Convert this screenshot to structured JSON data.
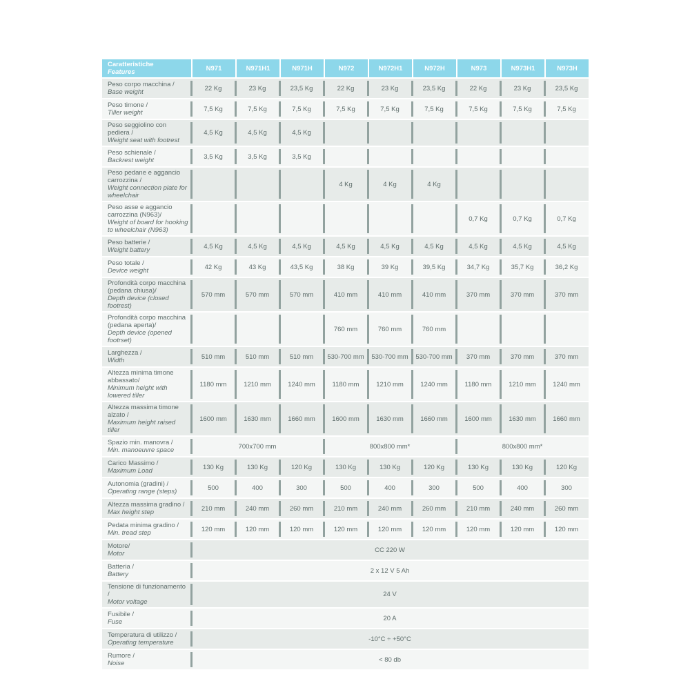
{
  "colors": {
    "header_bg": "#8dd7ea",
    "header_text": "#ffffff",
    "row_gray": "#e7ebe9",
    "row_light": "#f4f6f5",
    "divider": "#92a29f",
    "body_text": "#5d6c6a",
    "page_bg": "#ffffff"
  },
  "table": {
    "header": {
      "feature_label_it": "Caratteristiche",
      "feature_label_en": "Features",
      "columns": [
        "N971",
        "N971H1",
        "N971H",
        "N972",
        "N972H1",
        "N972H",
        "N973",
        "N973H1",
        "N973H"
      ]
    },
    "rows": [
      {
        "label_it": "Peso corpo macchina /",
        "label_en": "Base weight",
        "type": "cells",
        "values": [
          "22 Kg",
          "23 Kg",
          "23,5 Kg",
          "22 Kg",
          "23 Kg",
          "23,5 Kg",
          "22 Kg",
          "23 Kg",
          "23,5 Kg"
        ]
      },
      {
        "label_it": "Peso timone /",
        "label_en": "Tiller weight",
        "type": "cells",
        "values": [
          "7,5 Kg",
          "7,5 Kg",
          "7,5 Kg",
          "7,5 Kg",
          "7,5 Kg",
          "7,5 Kg",
          "7,5 Kg",
          "7,5 Kg",
          "7,5 Kg"
        ]
      },
      {
        "label_it": "Peso seggiolino con pediera /",
        "label_en": "Weight seat with footrest",
        "type": "cells",
        "values": [
          "4,5 Kg",
          "4,5 Kg",
          "4,5 Kg",
          "",
          "",
          "",
          "",
          "",
          ""
        ]
      },
      {
        "label_it": "Peso schienale /",
        "label_en": "Backrest weight",
        "type": "cells",
        "values": [
          "3,5 Kg",
          "3,5 Kg",
          "3,5 Kg",
          "",
          "",
          "",
          "",
          "",
          ""
        ]
      },
      {
        "label_it": "Peso pedane e aggancio carrozzina /",
        "label_en": "Weight connection plate for wheelchair",
        "type": "cells",
        "values": [
          "",
          "",
          "",
          "4 Kg",
          "4 Kg",
          "4 Kg",
          "",
          "",
          ""
        ]
      },
      {
        "label_it": "Peso asse e aggancio carrozzina (N963)/",
        "label_en": "Weight of board for hooking to wheelchair (N963)",
        "type": "cells",
        "values": [
          "",
          "",
          "",
          "",
          "",
          "",
          "0,7 Kg",
          "0,7 Kg",
          "0,7 Kg"
        ]
      },
      {
        "label_it": "Peso batterie /",
        "label_en": "Weight battery",
        "type": "cells",
        "values": [
          "4,5 Kg",
          "4,5 Kg",
          "4,5 Kg",
          "4,5 Kg",
          "4,5 Kg",
          "4,5 Kg",
          "4,5 Kg",
          "4,5 Kg",
          "4,5 Kg"
        ]
      },
      {
        "label_it": "Peso totale /",
        "label_en": "Device weight",
        "type": "cells",
        "values": [
          "42 Kg",
          "43 Kg",
          "43,5 Kg",
          "38 Kg",
          "39 Kg",
          "39,5 Kg",
          "34,7 Kg",
          "35,7 Kg",
          "36,2 Kg"
        ]
      },
      {
        "label_it": "Profondità corpo macchina (pedana chiusa)/",
        "label_en": "Depth device (closed footrest)",
        "type": "cells",
        "values": [
          "570 mm",
          "570 mm",
          "570 mm",
          "410 mm",
          "410 mm",
          "410 mm",
          "370 mm",
          "370 mm",
          "370 mm"
        ]
      },
      {
        "label_it": "Profondità corpo macchina (pedana aperta)/",
        "label_en": "Depth device (opened footrset)",
        "type": "cells",
        "values": [
          "",
          "",
          "",
          "760 mm",
          "760 mm",
          "760 mm",
          "",
          "",
          ""
        ]
      },
      {
        "label_it": "Larghezza /",
        "label_en": "Width",
        "type": "cells",
        "values": [
          "510 mm",
          "510 mm",
          "510 mm",
          "530-700 mm",
          "530-700 mm",
          "530-700 mm",
          "370 mm",
          "370 mm",
          "370 mm"
        ]
      },
      {
        "label_it": "Altezza minima timone abbassato/",
        "label_en": "Minimum height with lowered tiller",
        "type": "cells",
        "values": [
          "1180 mm",
          "1210 mm",
          "1240 mm",
          "1180 mm",
          "1210 mm",
          "1240 mm",
          "1180 mm",
          "1210 mm",
          "1240 mm"
        ]
      },
      {
        "label_it": "Altezza massima timone alzato /",
        "label_en": "Maximum height raised tiller",
        "type": "cells",
        "values": [
          "1600 mm",
          "1630 mm",
          "1660 mm",
          "1600 mm",
          "1630 mm",
          "1660 mm",
          "1600 mm",
          "1630 mm",
          "1660 mm"
        ]
      },
      {
        "label_it": "Spazio min. manovra /",
        "label_en": "Min. manoeuvre space",
        "type": "span3",
        "values": [
          "700x700 mm",
          "800x800 mm*",
          "800x800 mm*"
        ]
      },
      {
        "label_it": "Carico Massimo /",
        "label_en": "Maximum Load",
        "type": "cells",
        "values": [
          "130 Kg",
          "130 Kg",
          "120 Kg",
          "130 Kg",
          "130 Kg",
          "120 Kg",
          "130 Kg",
          "130 Kg",
          "120 Kg"
        ]
      },
      {
        "label_it": "Autonomia (gradini) /",
        "label_en": "Operating range (steps)",
        "type": "cells",
        "values": [
          "500",
          "400",
          "300",
          "500",
          "400",
          "300",
          "500",
          "400",
          "300"
        ]
      },
      {
        "label_it": "Altezza massima gradino /",
        "label_en": "Max height step",
        "type": "cells",
        "values": [
          "210 mm",
          "240 mm",
          "260 mm",
          "210 mm",
          "240 mm",
          "260 mm",
          "210 mm",
          "240 mm",
          "260 mm"
        ]
      },
      {
        "label_it": "Pedata minima gradino /",
        "label_en": "Min. tread step",
        "type": "cells",
        "values": [
          "120 mm",
          "120 mm",
          "120 mm",
          "120 mm",
          "120 mm",
          "120 mm",
          "120 mm",
          "120 mm",
          "120 mm"
        ]
      },
      {
        "label_it": "Motore/",
        "label_en": "Motor",
        "type": "full",
        "values": [
          "CC 220 W"
        ]
      },
      {
        "label_it": "Batteria /",
        "label_en": "Battery",
        "type": "full",
        "values": [
          "2 x 12 V 5 Ah"
        ]
      },
      {
        "label_it": "Tensione di funzionamento /",
        "label_en": "Motor voltage",
        "type": "full",
        "values": [
          "24 V"
        ]
      },
      {
        "label_it": "Fusibile /",
        "label_en": "Fuse",
        "type": "full",
        "values": [
          "20 A"
        ]
      },
      {
        "label_it": "Temperatura di utilizzo /",
        "label_en": "Operating temperature",
        "type": "full",
        "values": [
          "-10°C ÷ +50°C"
        ]
      },
      {
        "label_it": "Rumore /",
        "label_en": "Noise",
        "type": "full",
        "values": [
          "< 80 db"
        ]
      }
    ]
  }
}
